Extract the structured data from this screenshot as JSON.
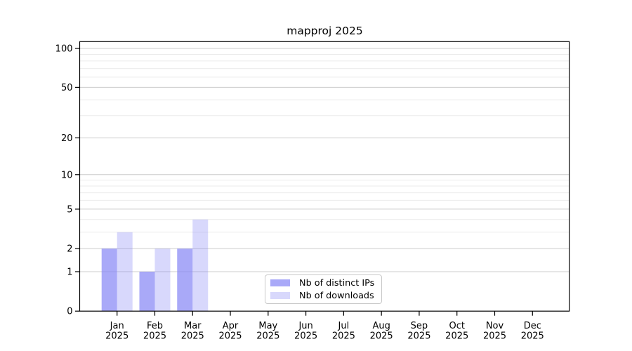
{
  "title": "mapproj 2025",
  "colors": {
    "bar_base": "#8888f5",
    "bar_distinct_ips_composite": "#aaaaf7",
    "bar_downloads_composite": "#d9d9f9",
    "grid_major": "#cccccc",
    "grid_minor": "#ebebeb",
    "axis": "#000000",
    "text": "#000000",
    "legend_border": "#c9c9c9",
    "background": "#ffffff"
  },
  "legend": {
    "items": [
      {
        "label": "Nb of distinct IPs"
      },
      {
        "label": "Nb of downloads"
      }
    ]
  },
  "chart_data": {
    "type": "bar",
    "title": "mapproj 2025",
    "y_scale": "log(1+y)",
    "categories": [
      "Jan 2025",
      "Feb 2025",
      "Mar 2025",
      "Apr 2025",
      "May 2025",
      "Jun 2025",
      "Jul 2025",
      "Aug 2025",
      "Sep 2025",
      "Oct 2025",
      "Nov 2025",
      "Dec 2025"
    ],
    "x_tick_months": [
      "Jan",
      "Feb",
      "Mar",
      "Apr",
      "May",
      "Jun",
      "Jul",
      "Aug",
      "Sep",
      "Oct",
      "Nov",
      "Dec"
    ],
    "x_tick_year": "2025",
    "series": [
      {
        "name": "Nb of distinct IPs",
        "color": "#8888f5",
        "alpha": 0.72,
        "values": [
          2,
          1,
          2,
          0,
          0,
          0,
          0,
          0,
          0,
          0,
          0,
          0
        ]
      },
      {
        "name": "Nb of downloads",
        "color": "#8888f5",
        "alpha": 0.33,
        "values": [
          3,
          2,
          4,
          0,
          0,
          0,
          0,
          0,
          0,
          0,
          0,
          0
        ]
      }
    ],
    "y_major_ticks": [
      0,
      1,
      2,
      5,
      10,
      20,
      50,
      100
    ],
    "y_minor_gridlines": [
      3,
      4,
      6,
      7,
      8,
      9,
      30,
      40,
      60,
      70,
      80,
      90
    ],
    "ylim": [
      0,
      112
    ],
    "grid": "horizontal major+minor, behind bars",
    "legend_position": "lower center-left inside plot"
  }
}
